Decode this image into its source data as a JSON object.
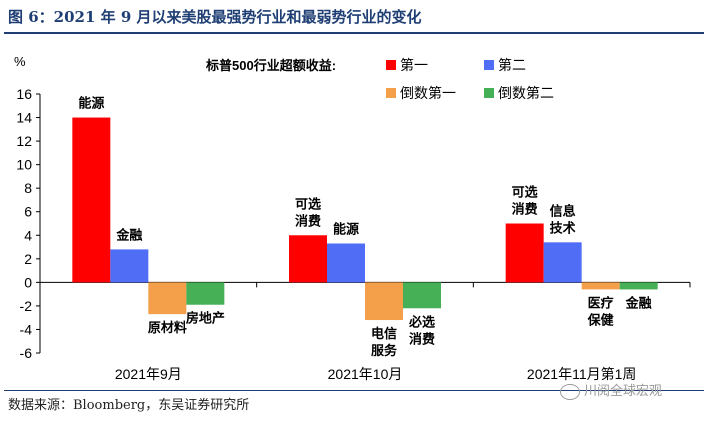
{
  "figure": {
    "title": "图 6：2021 年 9 月以来美股最强势行业和最弱势行业的变化",
    "source": "数据来源：Bloomberg，东吴证券研究所",
    "watermark": "川阅全球宏观"
  },
  "chart_data": {
    "type": "bar",
    "ylabel": "%",
    "ylim": [
      -6,
      16
    ],
    "yticks": [
      -6,
      -4,
      -2,
      0,
      2,
      4,
      6,
      8,
      10,
      12,
      14,
      16
    ],
    "grid": false,
    "legend_title": "标普500行业超额收益:",
    "legend_position": "top-right",
    "categories": [
      "2021年9月",
      "2021年10月",
      "2021年11月第1周"
    ],
    "series": [
      {
        "name": "第一",
        "color": "#ff0000",
        "values": [
          14.0,
          4.0,
          5.0
        ],
        "labels": [
          [
            "能源"
          ],
          [
            "可选",
            "消费"
          ],
          [
            "可选",
            "消费"
          ]
        ]
      },
      {
        "name": "第二",
        "color": "#4f6df5",
        "values": [
          2.8,
          3.3,
          3.4
        ],
        "labels": [
          [
            "金融"
          ],
          [
            "能源"
          ],
          [
            "信息",
            "技术"
          ]
        ]
      },
      {
        "name": "倒数第一",
        "color": "#f4a04b",
        "values": [
          -2.7,
          -3.2,
          -0.6
        ],
        "labels": [
          [
            "原材料"
          ],
          [
            "电信",
            "服务"
          ],
          [
            "医疗",
            "保健"
          ]
        ]
      },
      {
        "name": "倒数第二",
        "color": "#45b055",
        "values": [
          -1.9,
          -2.2,
          -0.6
        ],
        "labels": [
          [
            "房地产"
          ],
          [
            "必选",
            "消费"
          ],
          [
            "金融"
          ]
        ]
      }
    ]
  }
}
